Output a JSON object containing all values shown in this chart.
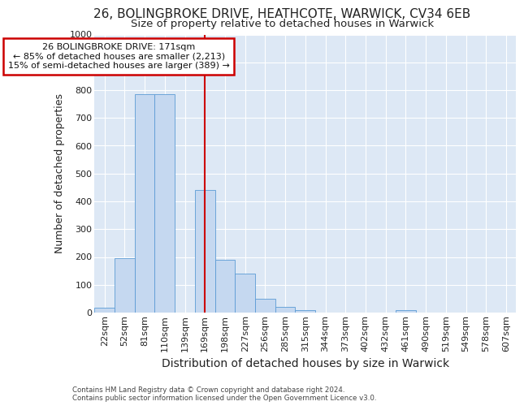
{
  "title1": "26, BOLINGBROKE DRIVE, HEATHCOTE, WARWICK, CV34 6EB",
  "title2": "Size of property relative to detached houses in Warwick",
  "xlabel": "Distribution of detached houses by size in Warwick",
  "ylabel": "Number of detached properties",
  "footnote": "Contains HM Land Registry data © Crown copyright and database right 2024.\nContains public sector information licensed under the Open Government Licence v3.0.",
  "bar_labels": [
    "22sqm",
    "52sqm",
    "81sqm",
    "110sqm",
    "139sqm",
    "169sqm",
    "198sqm",
    "227sqm",
    "256sqm",
    "285sqm",
    "315sqm",
    "344sqm",
    "373sqm",
    "402sqm",
    "432sqm",
    "461sqm",
    "490sqm",
    "519sqm",
    "549sqm",
    "578sqm",
    "607sqm"
  ],
  "bar_values": [
    18,
    195,
    785,
    785,
    0,
    440,
    190,
    140,
    50,
    20,
    10,
    0,
    0,
    0,
    0,
    10,
    0,
    0,
    0,
    0,
    0
  ],
  "bar_color": "#c5d8f0",
  "bar_edge_color": "#5b9bd5",
  "vline_x": 5,
  "vline_color": "#cc0000",
  "annotation_text": "26 BOLINGBROKE DRIVE: 171sqm\n← 85% of detached houses are smaller (2,213)\n15% of semi-detached houses are larger (389) →",
  "annotation_box_color": "#cc0000",
  "ylim": [
    0,
    1000
  ],
  "fig_bg_color": "#ffffff",
  "plot_bg_color": "#dde8f5",
  "grid_color": "#ffffff",
  "title1_fontsize": 11,
  "title2_fontsize": 9.5,
  "tick_fontsize": 8,
  "ylabel_fontsize": 9,
  "xlabel_fontsize": 10
}
